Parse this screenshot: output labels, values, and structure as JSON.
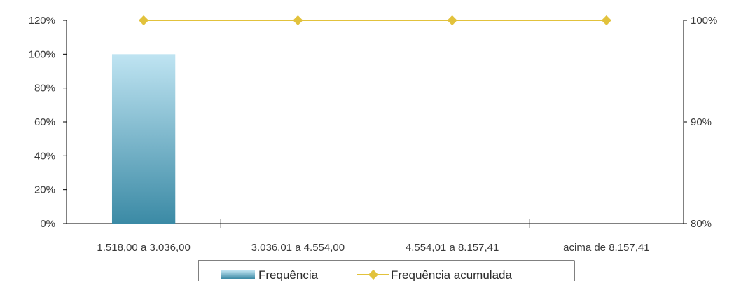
{
  "chart_data": {
    "type": "bar",
    "categories": [
      "1.518,00 a 3.036,00",
      "3.036,01 a 4.554,00",
      "4.554,01 a 8.157,41",
      "acima de 8.157,41"
    ],
    "series": [
      {
        "name": "Frequência",
        "type": "bar",
        "axis": "left",
        "values": [
          100,
          0,
          0,
          0
        ]
      },
      {
        "name": "Frequência acumulada",
        "type": "line",
        "axis": "right",
        "values": [
          100,
          100,
          100,
          100
        ]
      }
    ],
    "y_left": {
      "ticks": [
        "0%",
        "20%",
        "40%",
        "60%",
        "80%",
        "100%",
        "120%"
      ],
      "values": [
        0,
        20,
        40,
        60,
        80,
        100,
        120
      ],
      "ylim": [
        0,
        120
      ]
    },
    "y_right": {
      "ticks": [
        "80%",
        "90%",
        "100%"
      ],
      "values": [
        80,
        90,
        100
      ],
      "ylim": [
        80,
        100
      ]
    },
    "grid": false,
    "legend": {
      "position": "bottom",
      "entries": [
        "Frequência",
        "Frequência acumulada"
      ]
    },
    "colors": {
      "bar_top": "#bfe4f2",
      "bar_bottom": "#3b8aa5",
      "line": "#e2c23c",
      "axis": "#000000"
    }
  }
}
